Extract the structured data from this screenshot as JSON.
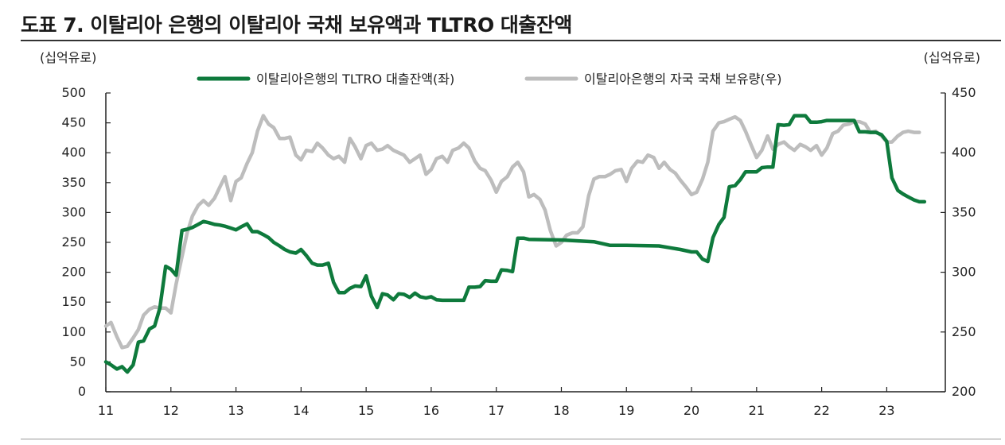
{
  "title": "도표 7. 이탈리아 은행의 이탈리아 국채 보유액과 TLTRO 대출잔액",
  "chart_data": {
    "type": "line",
    "left_unit": "(십억유로)",
    "right_unit": "(십억유로)",
    "x_ticks": [
      "11",
      "12",
      "13",
      "14",
      "15",
      "16",
      "17",
      "18",
      "19",
      "20",
      "21",
      "22",
      "23"
    ],
    "ylim_left": [
      0,
      500
    ],
    "ylim_right": [
      200,
      450
    ],
    "yticks_left": [
      0,
      50,
      100,
      150,
      200,
      250,
      300,
      350,
      400,
      450,
      500
    ],
    "yticks_right": [
      200,
      250,
      300,
      350,
      400,
      450
    ],
    "grid": false,
    "legend_position": "top-center",
    "series": [
      {
        "name": "이탈리아은행의 TLTRO 대출잔액(좌)",
        "axis": "left",
        "color": "#0e7a3c",
        "points": [
          [
            11.0,
            50
          ],
          [
            11.08,
            45
          ],
          [
            11.17,
            38
          ],
          [
            11.25,
            42
          ],
          [
            11.33,
            33
          ],
          [
            11.42,
            45
          ],
          [
            11.5,
            83
          ],
          [
            11.58,
            85
          ],
          [
            11.67,
            105
          ],
          [
            11.75,
            110
          ],
          [
            11.83,
            140
          ],
          [
            11.92,
            210
          ],
          [
            12.0,
            205
          ],
          [
            12.08,
            195
          ],
          [
            12.17,
            270
          ],
          [
            12.25,
            272
          ],
          [
            12.33,
            275
          ],
          [
            12.42,
            280
          ],
          [
            12.5,
            285
          ],
          [
            12.58,
            283
          ],
          [
            12.67,
            280
          ],
          [
            12.75,
            279
          ],
          [
            12.83,
            277
          ],
          [
            12.92,
            274
          ],
          [
            13.0,
            271
          ],
          [
            13.08,
            276
          ],
          [
            13.17,
            281
          ],
          [
            13.25,
            268
          ],
          [
            13.33,
            268
          ],
          [
            13.42,
            263
          ],
          [
            13.5,
            258
          ],
          [
            13.58,
            250
          ],
          [
            13.67,
            244
          ],
          [
            13.75,
            238
          ],
          [
            13.83,
            234
          ],
          [
            13.92,
            232
          ],
          [
            14.0,
            238
          ],
          [
            14.08,
            228
          ],
          [
            14.17,
            215
          ],
          [
            14.25,
            212
          ],
          [
            14.33,
            212
          ],
          [
            14.42,
            215
          ],
          [
            14.5,
            183
          ],
          [
            14.58,
            166
          ],
          [
            14.67,
            166
          ],
          [
            14.75,
            173
          ],
          [
            14.83,
            177
          ],
          [
            14.92,
            176
          ],
          [
            15.0,
            194
          ],
          [
            15.08,
            160
          ],
          [
            15.17,
            141
          ],
          [
            15.25,
            164
          ],
          [
            15.33,
            162
          ],
          [
            15.42,
            154
          ],
          [
            15.5,
            164
          ],
          [
            15.58,
            163
          ],
          [
            15.67,
            158
          ],
          [
            15.75,
            165
          ],
          [
            15.83,
            159
          ],
          [
            15.92,
            157
          ],
          [
            16.0,
            159
          ],
          [
            16.08,
            154
          ],
          [
            16.17,
            153
          ],
          [
            16.25,
            153
          ],
          [
            16.33,
            153
          ],
          [
            16.42,
            153
          ],
          [
            16.5,
            153
          ],
          [
            16.58,
            175
          ],
          [
            16.67,
            175
          ],
          [
            16.75,
            176
          ],
          [
            16.83,
            186
          ],
          [
            16.92,
            185
          ],
          [
            17.0,
            185
          ],
          [
            17.08,
            204
          ],
          [
            17.17,
            203
          ],
          [
            17.25,
            201
          ],
          [
            17.33,
            257
          ],
          [
            17.42,
            257
          ],
          [
            17.5,
            255
          ],
          [
            18.0,
            254
          ],
          [
            18.5,
            251
          ],
          [
            18.67,
            247
          ],
          [
            18.75,
            245
          ],
          [
            19.0,
            245
          ],
          [
            19.5,
            244
          ],
          [
            19.67,
            241
          ],
          [
            19.83,
            238
          ],
          [
            20.0,
            234
          ],
          [
            20.08,
            234
          ],
          [
            20.17,
            222
          ],
          [
            20.25,
            218
          ],
          [
            20.33,
            258
          ],
          [
            20.42,
            280
          ],
          [
            20.5,
            292
          ],
          [
            20.58,
            343
          ],
          [
            20.67,
            345
          ],
          [
            20.75,
            355
          ],
          [
            20.83,
            368
          ],
          [
            20.92,
            368
          ],
          [
            21.0,
            368
          ],
          [
            21.08,
            375
          ],
          [
            21.17,
            376
          ],
          [
            21.25,
            376
          ],
          [
            21.33,
            447
          ],
          [
            21.42,
            446
          ],
          [
            21.5,
            447
          ],
          [
            21.58,
            462
          ],
          [
            21.67,
            462
          ],
          [
            21.75,
            462
          ],
          [
            21.83,
            451
          ],
          [
            21.92,
            451
          ],
          [
            22.0,
            452
          ],
          [
            22.08,
            454
          ],
          [
            22.17,
            454
          ],
          [
            22.25,
            454
          ],
          [
            22.33,
            454
          ],
          [
            22.42,
            454
          ],
          [
            22.5,
            454
          ],
          [
            22.58,
            435
          ],
          [
            22.67,
            435
          ],
          [
            22.75,
            434
          ],
          [
            22.83,
            434
          ],
          [
            22.92,
            430
          ],
          [
            23.0,
            419
          ],
          [
            23.08,
            358
          ],
          [
            23.17,
            337
          ],
          [
            23.25,
            331
          ],
          [
            23.33,
            326
          ],
          [
            23.42,
            321
          ],
          [
            23.5,
            318
          ],
          [
            23.58,
            318
          ]
        ]
      },
      {
        "name": "이탈리아은행의 자국 국채 보유량(우)",
        "axis": "right",
        "color": "#bdbdbd",
        "points": [
          [
            11.0,
            255
          ],
          [
            11.08,
            258
          ],
          [
            11.17,
            246
          ],
          [
            11.25,
            237
          ],
          [
            11.33,
            238
          ],
          [
            11.42,
            245
          ],
          [
            11.5,
            252
          ],
          [
            11.58,
            264
          ],
          [
            11.67,
            269
          ],
          [
            11.75,
            271
          ],
          [
            11.83,
            270
          ],
          [
            11.92,
            270
          ],
          [
            12.0,
            266
          ],
          [
            12.08,
            290
          ],
          [
            12.17,
            313
          ],
          [
            12.25,
            333
          ],
          [
            12.33,
            347
          ],
          [
            12.42,
            356
          ],
          [
            12.5,
            360
          ],
          [
            12.58,
            356
          ],
          [
            12.67,
            362
          ],
          [
            12.75,
            371
          ],
          [
            12.83,
            380
          ],
          [
            12.92,
            360
          ],
          [
            13.0,
            376
          ],
          [
            13.08,
            379
          ],
          [
            13.17,
            391
          ],
          [
            13.25,
            400
          ],
          [
            13.33,
            418
          ],
          [
            13.42,
            431
          ],
          [
            13.5,
            424
          ],
          [
            13.58,
            421
          ],
          [
            13.67,
            412
          ],
          [
            13.75,
            412
          ],
          [
            13.83,
            413
          ],
          [
            13.92,
            398
          ],
          [
            14.0,
            394
          ],
          [
            14.08,
            402
          ],
          [
            14.17,
            401
          ],
          [
            14.25,
            408
          ],
          [
            14.33,
            404
          ],
          [
            14.42,
            398
          ],
          [
            14.5,
            395
          ],
          [
            14.58,
            397
          ],
          [
            14.67,
            392
          ],
          [
            14.75,
            412
          ],
          [
            14.83,
            405
          ],
          [
            14.92,
            395
          ],
          [
            15.0,
            406
          ],
          [
            15.08,
            408
          ],
          [
            15.17,
            402
          ],
          [
            15.25,
            403
          ],
          [
            15.33,
            406
          ],
          [
            15.42,
            402
          ],
          [
            15.5,
            400
          ],
          [
            15.58,
            398
          ],
          [
            15.67,
            392
          ],
          [
            15.75,
            395
          ],
          [
            15.83,
            398
          ],
          [
            15.92,
            382
          ],
          [
            16.0,
            386
          ],
          [
            16.08,
            395
          ],
          [
            16.17,
            397
          ],
          [
            16.25,
            392
          ],
          [
            16.33,
            402
          ],
          [
            16.42,
            404
          ],
          [
            16.5,
            408
          ],
          [
            16.58,
            404
          ],
          [
            16.67,
            393
          ],
          [
            16.75,
            387
          ],
          [
            16.83,
            385
          ],
          [
            16.92,
            377
          ],
          [
            17.0,
            367
          ],
          [
            17.08,
            376
          ],
          [
            17.17,
            380
          ],
          [
            17.25,
            388
          ],
          [
            17.33,
            392
          ],
          [
            17.42,
            384
          ],
          [
            17.5,
            363
          ],
          [
            17.58,
            365
          ],
          [
            17.67,
            361
          ],
          [
            17.75,
            352
          ],
          [
            17.83,
            335
          ],
          [
            17.92,
            322
          ],
          [
            18.0,
            325
          ],
          [
            18.08,
            331
          ],
          [
            18.17,
            333
          ],
          [
            18.25,
            333
          ],
          [
            18.33,
            338
          ],
          [
            18.42,
            364
          ],
          [
            18.5,
            378
          ],
          [
            18.58,
            380
          ],
          [
            18.67,
            380
          ],
          [
            18.75,
            382
          ],
          [
            18.83,
            385
          ],
          [
            18.92,
            386
          ],
          [
            19.0,
            376
          ],
          [
            19.08,
            387
          ],
          [
            19.17,
            393
          ],
          [
            19.25,
            392
          ],
          [
            19.33,
            398
          ],
          [
            19.42,
            396
          ],
          [
            19.5,
            387
          ],
          [
            19.58,
            392
          ],
          [
            19.67,
            386
          ],
          [
            19.75,
            383
          ],
          [
            19.83,
            377
          ],
          [
            19.92,
            371
          ],
          [
            20.0,
            365
          ],
          [
            20.08,
            367
          ],
          [
            20.17,
            378
          ],
          [
            20.25,
            392
          ],
          [
            20.33,
            418
          ],
          [
            20.42,
            425
          ],
          [
            20.5,
            426
          ],
          [
            20.58,
            428
          ],
          [
            20.67,
            430
          ],
          [
            20.75,
            427
          ],
          [
            20.83,
            418
          ],
          [
            20.92,
            406
          ],
          [
            21.0,
            396
          ],
          [
            21.08,
            402
          ],
          [
            21.17,
            414
          ],
          [
            21.25,
            403
          ],
          [
            21.33,
            407
          ],
          [
            21.42,
            409
          ],
          [
            21.5,
            405
          ],
          [
            21.58,
            402
          ],
          [
            21.67,
            407
          ],
          [
            21.75,
            405
          ],
          [
            21.83,
            402
          ],
          [
            21.92,
            406
          ],
          [
            22.0,
            398
          ],
          [
            22.08,
            404
          ],
          [
            22.17,
            416
          ],
          [
            22.25,
            418
          ],
          [
            22.33,
            423
          ],
          [
            22.42,
            424
          ],
          [
            22.5,
            426
          ],
          [
            22.58,
            426
          ],
          [
            22.67,
            424
          ],
          [
            22.75,
            417
          ],
          [
            22.83,
            418
          ],
          [
            22.92,
            414
          ],
          [
            23.0,
            409
          ],
          [
            23.08,
            409
          ],
          [
            23.17,
            414
          ],
          [
            23.25,
            417
          ],
          [
            23.33,
            418
          ],
          [
            23.42,
            417
          ],
          [
            23.5,
            417
          ]
        ]
      }
    ]
  }
}
